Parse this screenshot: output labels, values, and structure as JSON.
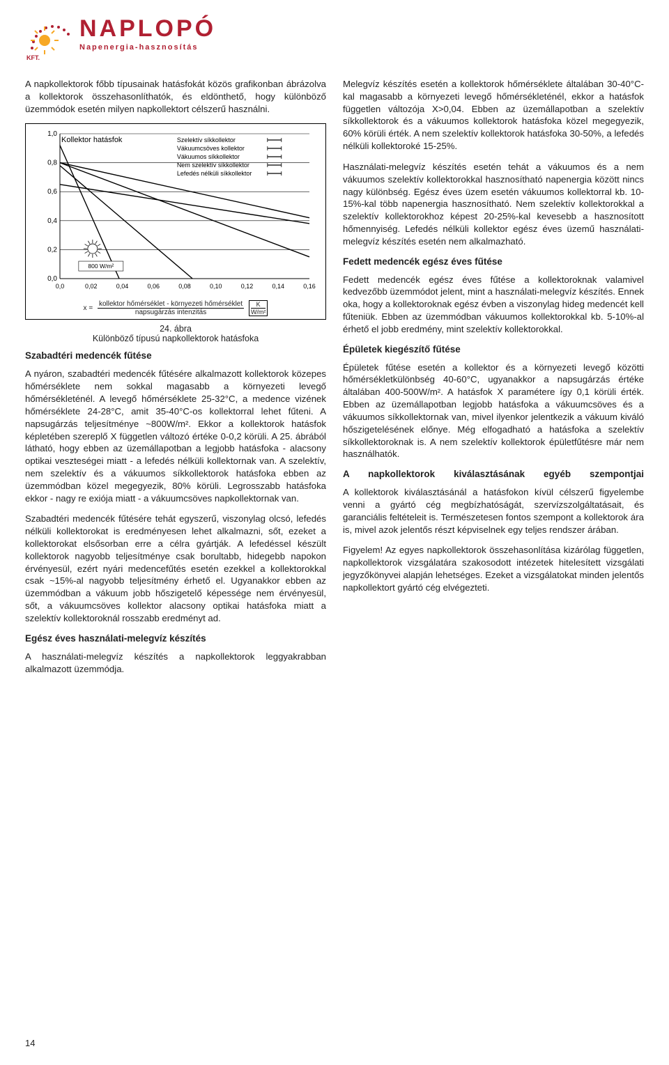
{
  "logo": {
    "word": "NAPLOPÓ",
    "sub": "Napenergia-hasznosítás",
    "kft": "KFT."
  },
  "intro": "A napkollektorok főbb típusainak hatásfokát közös grafikonban ábrázolva a kollektorok összehasonlíthatók, és eldönthető, hogy különböző üzemmódok esetén milyen napkollektort célszerű használni.",
  "chart": {
    "title": "Kollektor hatásfok",
    "irradiance_label": "800 W/m²",
    "yticks": [
      "1,0",
      "0,8",
      "0,6",
      "0,4",
      "0,2",
      "0,0"
    ],
    "xticks": [
      "0,0",
      "0,02",
      "0,04",
      "0,06",
      "0,08",
      "0,10",
      "0,12",
      "0,14",
      "0,16"
    ],
    "legend": [
      "Szelektív síkkollektor",
      "Vákuumcsöves kollektor",
      "Vákuumos síkkollektor",
      "Nem szelektív síkkollektor",
      "Lefedés nélküli síkkollektor"
    ],
    "formula_left": "x =",
    "formula_top": "kollektor hőmérséklet - környezeti hőmérséklet",
    "formula_bottom": "napsugárzás intenzitás",
    "formula_unit_top": "K",
    "formula_unit_bottom": "W/m²",
    "colors": {
      "axis": "#000000",
      "grid": "#000000",
      "line": "#000000",
      "bg": "#ffffff"
    }
  },
  "caption": "24. ábra\nKülönböző típusú napkollektorok hatásfoka",
  "left": {
    "h1": "Szabadtéri medencék fűtése",
    "p1": "A nyáron, szabadtéri medencék fűtésére alkalmazott kollektorok közepes hőmérséklete nem sokkal magasabb a környezeti levegő hőmérsékleténél. A levegő hőmérséklete 25-32°C, a medence vizének hőmérséklete 24-28°C, amit 35-40°C-os kollektorral lehet fűteni. A napsugárzás teljesítménye ~800W/m². Ekkor a kollektorok hatásfok képletében szereplő X független változó értéke 0-0,2 körüli. A 25. ábrából látható, hogy ebben az üzemállapotban a legjobb hatásfoka - alacsony optikai veszteségei miatt - a lefedés nélküli kollektornak van. A szelektív, nem szelektív és a vákuumos síkkollektorok hatásfoka ebben az üzemmódban közel megegyezik, 80% körüli. Legrosszabb hatásfoka ekkor - nagy re  exiója miatt - a vákuumcsöves napkollektornak van.",
    "p2": "Szabadtéri medencék fűtésére tehát egyszerű, viszonylag olcsó, lefedés nélküli kollektorokat is eredményesen lehet alkalmazni, sőt, ezeket a kollektorokat elsősorban erre a célra gyártják. A lefedéssel készült kollektorok nagyobb teljesítménye csak borultabb, hidegebb napokon érvényesül, ezért nyári medencefűtés esetén ezekkel a kollektorokkal csak ~15%-al nagyobb teljesítmény érhető el. Ugyanakkor ebben az üzemmódban a vákuum jobb hőszigetelő képessége nem érvényesül, sőt, a vákuumcsöves kollektor alacsony optikai hatásfoka miatt a szelektív kollektoroknál rosszabb eredményt ad.",
    "h2": "Egész éves használati-melegvíz készítés",
    "p3": "A használati-melegvíz készítés a napkollektorok leggyakrabban alkalmazott üzemmódja."
  },
  "right": {
    "p1": "Melegvíz készítés esetén a kollektorok hőmérséklete általában 30-40°C-kal magasabb a környezeti levegő hőmérsékleténél, ekkor a hatásfok független változója X>0,04. Ebben az üzemállapotban a szelektív síkkollektorok és a vákuumos kollektorok hatásfoka közel megegyezik, 60% körüli érték. A nem szelektív kollektorok hatásfoka 30-50%, a lefedés nélküli kollektoroké 15-25%.",
    "p2": "Használati-melegvíz készítés esetén tehát a vákuumos és a nem vákuumos szelektív kollektorokkal hasznosítható napenergia között nincs nagy különbség. Egész éves üzem esetén vákuumos kollektorral kb. 10-15%-kal több napenergia hasznosítható. Nem szelektív kollektorokkal a szelektív kollektorokhoz képest 20-25%-kal kevesebb a hasznosított hőmennyiség. Lefedés nélküli kollektor egész éves üzemű használati-melegvíz készítés esetén nem alkalmazható.",
    "h1": "Fedett medencék egész éves fűtése",
    "p3": "Fedett medencék egész éves fűtése a kollektoroknak valamivel kedvezőbb üzemmódot jelent, mint a használati-melegvíz készítés. Ennek oka, hogy a kollektoroknak egész évben a viszonylag hideg medencét kell fűteniük. Ebben az üzemmódban vákuumos kollektorokkal kb. 5-10%-al érhető el jobb eredmény, mint szelektív kollektorokkal.",
    "h2": "Épületek kiegészítő fűtése",
    "p4": "Épületek fűtése esetén a kollektor és a környezeti levegő közötti hőmérsékletkülönbség 40-60°C, ugyanakkor a napsugárzás értéke általában 400-500W/m². A hatásfok X paramétere így 0,1 körüli érték. Ebben az üzemállapotban legjobb hatásfoka a vákuumcsöves és a vákuumos síkkollektornak van, mivel ilyenkor jelentkezik a vákuum kiváló hőszigetelésének előnye. Még elfogadható a hatásfoka a szelektív síkkollektoroknak is. A nem szelektív kollektorok épületfűtésre már nem használhatók.",
    "h3": "A napkollektorok kiválasztásának egyéb szempontjai",
    "p5": "A kollektorok kiválasztásánál a hatásfokon kívül célszerű figyelembe venni a gyártó cég megbízhatóságát, szervízszolgáltatásait, és garanciális feltételeit is. Természetesen fontos szempont a kollektorok ára is, mivel azok jelentős részt képviselnek egy teljes rendszer árában.",
    "p6": "Figyelem! Az egyes napkollektorok összehasonlítása kizárólag független, napkollektorok vizsgálatára szakosodott intézetek hitelesített vizsgálati jegyzőkönyvei alapján lehetséges. Ezeket a vizsgálatokat minden jelentős napkollektort gyártó cég elvégezteti."
  },
  "page_number": "14"
}
